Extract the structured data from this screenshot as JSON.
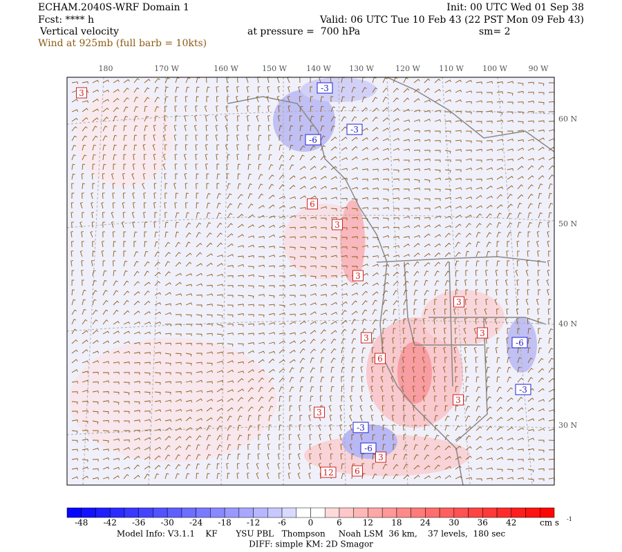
{
  "header": {
    "model": "ECHAM.2040S-WRF Domain 1",
    "forecast": "Fcst: **** h",
    "field": "Vertical velocity",
    "wind": "Wind at 925mb (full barb = 10kts)",
    "init": "Init: 00 UTC Wed 01 Sep 38",
    "valid": "Valid: 06 UTC Tue 10 Feb 43 (22 PST Mon 09 Feb 43)",
    "pressure": "at pressure =  700 hPa",
    "smoothing": "sm= 2"
  },
  "map": {
    "longitude_labels": [
      "180",
      "170 W",
      "160 W",
      "150 W",
      "140 W",
      "130 W",
      "120 W",
      "110 W",
      "100 W",
      "90 W"
    ],
    "latitude_labels": [
      "60 N",
      "50 N",
      "40 N",
      "30 N"
    ],
    "contour_labels": [
      "3",
      "-3",
      "-3",
      "-6",
      "6",
      "3",
      "3",
      "3",
      "6",
      "3",
      "-3",
      "-6",
      "3",
      "12",
      "6",
      "3",
      "-6",
      "-3",
      "3",
      "3"
    ]
  },
  "colorbar": {
    "lim": [
      -51,
      51
    ],
    "step": 3,
    "low_color": "#0000ff",
    "mid_color": "#ffffff",
    "high_color": "#ff0000",
    "ticks": [
      -48,
      -42,
      -36,
      -30,
      -24,
      -18,
      -12,
      -6,
      0,
      6,
      12,
      18,
      24,
      30,
      36,
      42
    ],
    "unit": "cm s",
    "unit_exponent": "-1"
  },
  "footer": {
    "model_info": "Model Info: V3.1.1    KF       YSU PBL   Thompson     Noah LSM  36 km,    37 levels,  180 sec",
    "diffusion": "DIFF: simple KM: 2D Smagor"
  }
}
